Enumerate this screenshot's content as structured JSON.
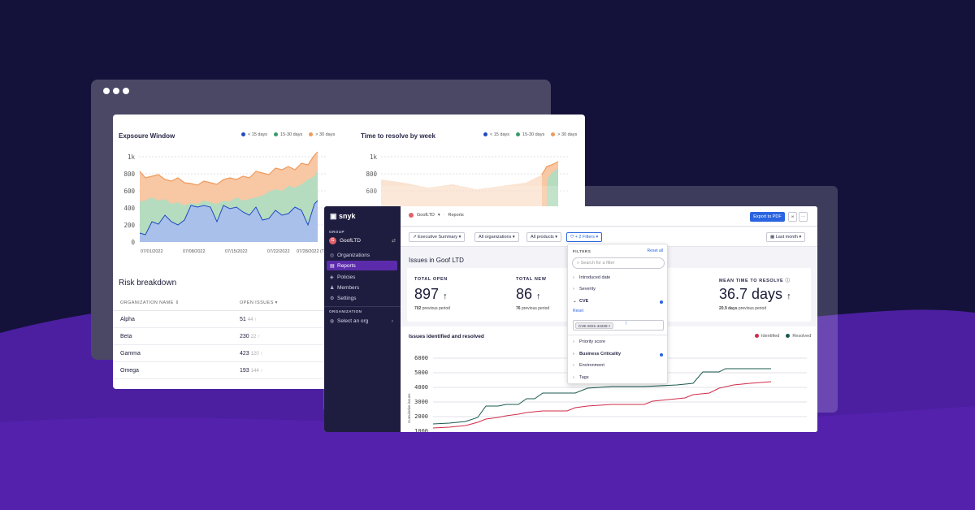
{
  "colors": {
    "background": "#14123a",
    "wave": "#4b1fa0",
    "accent_purple": "#5b2bab",
    "brand_blue": "#2a64e0",
    "series_lt15": "#1f49c2",
    "series_15_30": "#3a9a6a",
    "series_gt30": "#f09a5a",
    "identified": "#d02c4a",
    "resolved": "#1a5a4f"
  },
  "window_dots": [
    "dot",
    "dot",
    "dot"
  ],
  "exposure_chart": {
    "title": "Expsoure Window",
    "legend": [
      "< 15 days",
      "15-30 days",
      "> 30 days"
    ],
    "y_ticks": [
      "1k",
      "800",
      "600",
      "400",
      "200",
      "0"
    ],
    "x_ticks": [
      "07/01/2022",
      "07/08/2022",
      "07/15/2022",
      "07/22/2022",
      "07/28/2022 (T"
    ]
  },
  "resolve_chart": {
    "title": "Time to resolve by week",
    "legend": [
      "< 15 days",
      "15-30 days",
      "> 30 days"
    ],
    "y_ticks": [
      "1k",
      "800",
      "600"
    ]
  },
  "risk_breakdown": {
    "title": "Risk breakdown",
    "columns": [
      "ORGANIZATION NAME",
      "OPEN ISSUES"
    ],
    "rows": [
      {
        "org": "Alpha",
        "issues": "51",
        "delta": "44 ↑"
      },
      {
        "org": "Beta",
        "issues": "230",
        "delta": "22 ↑"
      },
      {
        "org": "Gamma",
        "issues": "423",
        "delta": "120 ↑"
      },
      {
        "org": "Omega",
        "issues": "193",
        "delta": "144 ↑"
      }
    ]
  },
  "sidebar": {
    "logo": "snyk",
    "group_label": "GROUP",
    "group_name": "GoofLTD",
    "group_avatar": "G",
    "items": [
      {
        "label": "Organizations",
        "icon": "org-icon"
      },
      {
        "label": "Reports",
        "icon": "reports-icon"
      },
      {
        "label": "Policies",
        "icon": "policies-icon"
      },
      {
        "label": "Members",
        "icon": "members-icon"
      },
      {
        "label": "Settings",
        "icon": "settings-icon"
      }
    ],
    "org_label": "ORGANIZATION",
    "select_org": "Select an org"
  },
  "topbar": {
    "breadcrumb_group": "GoofLTD",
    "breadcrumb_page": "Reports",
    "export_label": "Export to PDF",
    "link_icon": "∞",
    "more_icon": "···"
  },
  "filters": {
    "report_type": "Executive Summary",
    "orgs": "All organizations",
    "products": "All products",
    "more_filters": "+ 2 Filters",
    "date_range": "Last month"
  },
  "summary": {
    "title": "Issues in Goof LTD",
    "metrics": [
      {
        "label": "TOTAL OPEN",
        "value": "897",
        "arrow": "↑",
        "sub_value": "702",
        "sub_text": "previous period"
      },
      {
        "label": "TOTAL NEW",
        "value": "86",
        "arrow": "↑",
        "sub_value": "76",
        "sub_text": "previous period"
      },
      {
        "label": "MEAN TIME TO RESOLVE",
        "value": "36.7 days",
        "arrow": "↑",
        "sub_value": "20.9 days",
        "sub_text": "previous period"
      }
    ]
  },
  "issues_chart": {
    "title": "Issues identified and resolved",
    "legend": [
      "Identified",
      "Resolved"
    ],
    "y_label": "Cumulative issues",
    "y_ticks": [
      "6000",
      "5000",
      "4000",
      "3000",
      "2000",
      "1000"
    ]
  },
  "filter_dropdown": {
    "header": "FILTERS",
    "reset_all": "Reset all",
    "search_placeholder": "Search for a filter",
    "items": [
      {
        "label": "Introduced date",
        "expanded": false,
        "active": false
      },
      {
        "label": "Severity",
        "expanded": false,
        "active": false
      },
      {
        "label": "CVE",
        "expanded": true,
        "active": true
      },
      {
        "label": "Priority score",
        "expanded": false,
        "active": false
      },
      {
        "label": "Business Criticality",
        "expanded": false,
        "active": true
      },
      {
        "label": "Environment",
        "expanded": false,
        "active": false
      },
      {
        "label": "Tags",
        "expanded": false,
        "active": false
      }
    ],
    "cve_reset": "Reset",
    "cve_chip": "CVE-2021-44228"
  }
}
